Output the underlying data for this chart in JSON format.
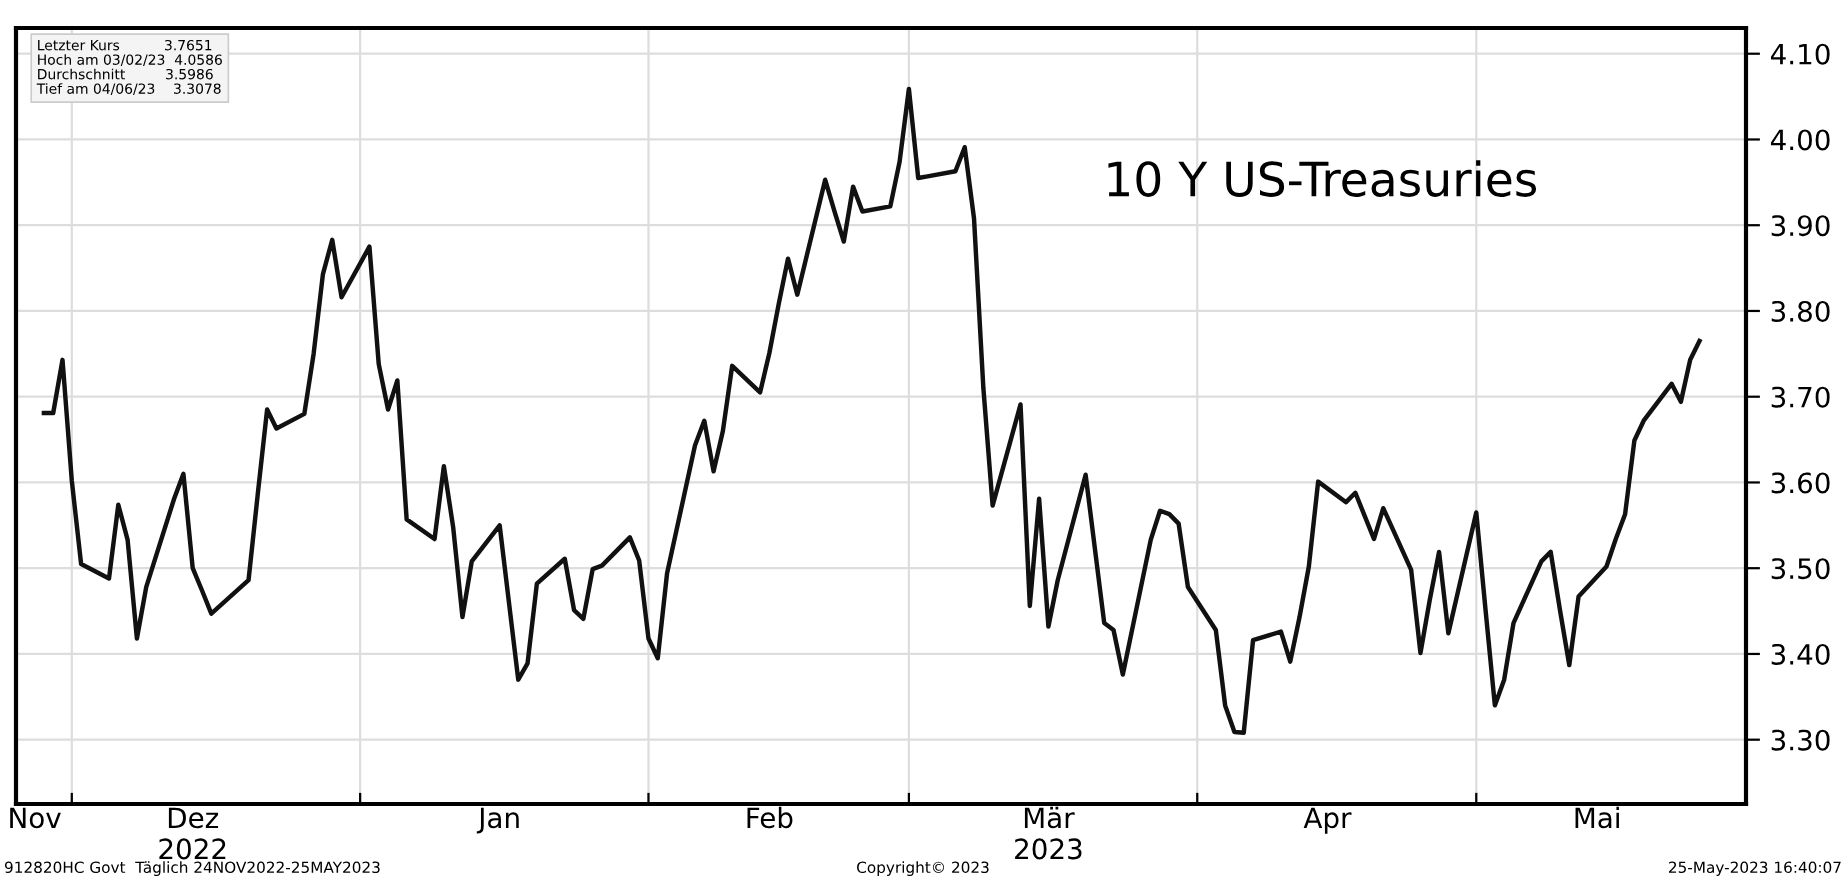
{
  "chart_data": {
    "type": "line",
    "title": "10 Y US-Treasuries",
    "x": [
      "2022-11-28",
      "2022-11-29",
      "2022-11-30",
      "2022-12-01",
      "2022-12-02",
      "2022-12-05",
      "2022-12-06",
      "2022-12-07",
      "2022-12-08",
      "2022-12-09",
      "2022-12-12",
      "2022-12-13",
      "2022-12-14",
      "2022-12-15",
      "2022-12-16",
      "2022-12-20",
      "2022-12-21",
      "2022-12-22",
      "2022-12-23",
      "2022-12-26",
      "2022-12-27",
      "2022-12-28",
      "2022-12-29",
      "2022-12-30",
      "2023-01-02",
      "2023-01-03",
      "2023-01-04",
      "2023-01-05",
      "2023-01-06",
      "2023-01-09",
      "2023-01-10",
      "2023-01-11",
      "2023-01-12",
      "2023-01-13",
      "2023-01-16",
      "2023-01-18",
      "2023-01-19",
      "2023-01-20",
      "2023-01-23",
      "2023-01-24",
      "2023-01-25",
      "2023-01-26",
      "2023-01-27",
      "2023-01-30",
      "2023-01-31",
      "2023-02-01",
      "2023-02-02",
      "2023-02-03",
      "2023-02-06",
      "2023-02-07",
      "2023-02-08",
      "2023-02-09",
      "2023-02-10",
      "2023-02-13",
      "2023-02-14",
      "2023-02-15",
      "2023-02-16",
      "2023-02-17",
      "2023-02-20",
      "2023-02-21",
      "2023-02-22",
      "2023-02-23",
      "2023-02-24",
      "2023-02-27",
      "2023-02-28",
      "2023-03-01",
      "2023-03-02",
      "2023-03-03",
      "2023-03-06",
      "2023-03-07",
      "2023-03-08",
      "2023-03-09",
      "2023-03-10",
      "2023-03-13",
      "2023-03-14",
      "2023-03-15",
      "2023-03-16",
      "2023-03-17",
      "2023-03-20",
      "2023-03-22",
      "2023-03-23",
      "2023-03-24",
      "2023-03-27",
      "2023-03-28",
      "2023-03-29",
      "2023-03-30",
      "2023-03-31",
      "2023-04-03",
      "2023-04-04",
      "2023-04-05",
      "2023-04-06",
      "2023-04-07",
      "2023-04-10",
      "2023-04-11",
      "2023-04-12",
      "2023-04-13",
      "2023-04-14",
      "2023-04-17",
      "2023-04-18",
      "2023-04-20",
      "2023-04-21",
      "2023-04-24",
      "2023-04-25",
      "2023-04-26",
      "2023-04-27",
      "2023-04-28",
      "2023-05-01",
      "2023-05-02",
      "2023-05-03",
      "2023-05-04",
      "2023-05-05",
      "2023-05-08",
      "2023-05-09",
      "2023-05-10",
      "2023-05-11",
      "2023-05-12",
      "2023-05-15",
      "2023-05-16",
      "2023-05-17",
      "2023-05-18",
      "2023-05-19",
      "2023-05-22",
      "2023-05-23",
      "2023-05-24",
      "2023-05-25"
    ],
    "series": [
      {
        "color": "#111111",
        "values": [
          3.681,
          3.681,
          3.743,
          3.602,
          3.505,
          3.488,
          3.574,
          3.533,
          3.418,
          3.478,
          3.581,
          3.61,
          3.5,
          3.474,
          3.447,
          3.486,
          3.587,
          3.685,
          3.663,
          3.68,
          3.75,
          3.843,
          3.883,
          3.816,
          3.875,
          3.738,
          3.685,
          3.719,
          3.557,
          3.534,
          3.619,
          3.548,
          3.443,
          3.508,
          3.55,
          3.37,
          3.389,
          3.482,
          3.511,
          3.451,
          3.441,
          3.499,
          3.503,
          3.536,
          3.509,
          3.418,
          3.395,
          3.494,
          3.643,
          3.672,
          3.613,
          3.66,
          3.736,
          3.705,
          3.751,
          3.808,
          3.861,
          3.819,
          3.953,
          3.916,
          3.881,
          3.945,
          3.916,
          3.922,
          3.974,
          4.059,
          3.955,
          3.957,
          3.963,
          3.991,
          3.908,
          3.711,
          3.573,
          3.691,
          3.456,
          3.581,
          3.432,
          3.486,
          3.609,
          3.436,
          3.428,
          3.376,
          3.533,
          3.567,
          3.563,
          3.552,
          3.478,
          3.428,
          3.34,
          3.309,
          3.308,
          3.416,
          3.426,
          3.391,
          3.443,
          3.502,
          3.601,
          3.577,
          3.588,
          3.534,
          3.57,
          3.498,
          3.401,
          3.463,
          3.519,
          3.424,
          3.565,
          3.451,
          3.34,
          3.37,
          3.436,
          3.508,
          3.519,
          3.451,
          3.387,
          3.467,
          3.502,
          3.534,
          3.563,
          3.649,
          3.672,
          3.715,
          3.694,
          3.743,
          3.765
        ]
      }
    ],
    "xlim": [
      "2022-11-25",
      "2023-05-30"
    ],
    "xticks": [
      {
        "value": "2022-12-01",
        "label": null
      },
      {
        "value": "2023-01-01",
        "label": null
      },
      {
        "value": "2023-02-01",
        "label": null
      },
      {
        "value": "2023-03-01",
        "label": null
      },
      {
        "value": "2023-04-01",
        "label": null
      },
      {
        "value": "2023-05-01",
        "label": null
      },
      {
        "value": "2022-11-27",
        "label": "Nov"
      },
      {
        "value": "2022-12-14",
        "label": "Dez\n2022"
      },
      {
        "value": "2023-01-16",
        "label": "Jan"
      },
      {
        "value": "2023-02-14",
        "label": "Feb"
      },
      {
        "value": "2023-03-16",
        "label": "Mär\n2023"
      },
      {
        "value": "2023-04-15",
        "label": "Apr"
      },
      {
        "value": "2023-05-14",
        "label": "Mai"
      }
    ],
    "ylim": [
      3.225,
      4.13
    ],
    "yticks": [
      {
        "value": 3.3,
        "label": "3.30"
      },
      {
        "value": 3.4,
        "label": "3.40"
      },
      {
        "value": 3.5,
        "label": "3.50"
      },
      {
        "value": 3.6,
        "label": "3.60"
      },
      {
        "value": 3.7,
        "label": "3.70"
      },
      {
        "value": 3.8,
        "label": "3.80"
      },
      {
        "value": 3.9,
        "label": "3.90"
      },
      {
        "value": 4.0,
        "label": "4.00"
      },
      {
        "value": 4.1,
        "label": "4.10"
      }
    ],
    "grid": true,
    "annotations": [
      "Letzter Kurs          3.7651",
      "Hoch am 03/02/23  4.0586",
      "Durchschnitt         3.5986",
      "Tief am 04/06/23    3.3078",
      "912820HC Govt  Täglich 24NOV2022-25MAY2023",
      "Copyright© 2023",
      "25-May-2023 16:40:07"
    ]
  }
}
